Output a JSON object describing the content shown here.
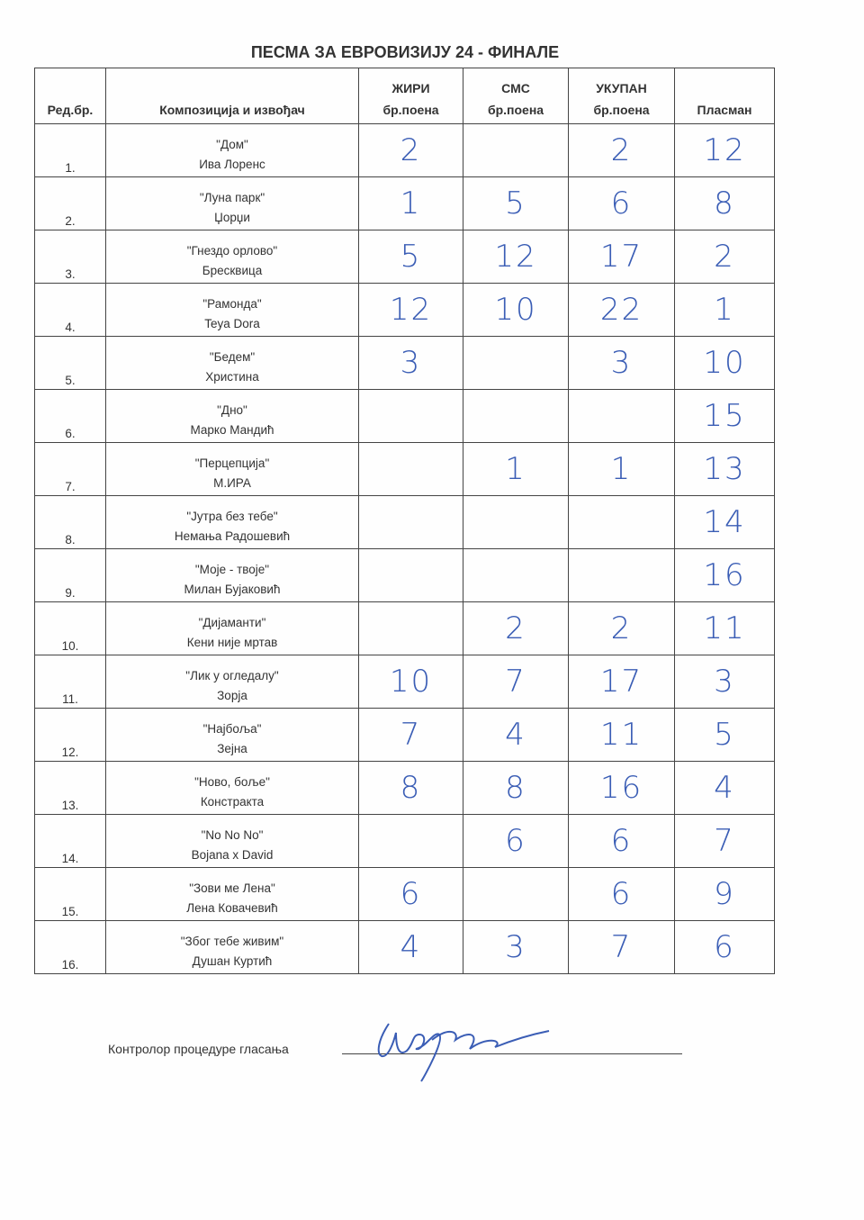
{
  "title": "ПЕСМА ЗА ЕВРОВИЗИЈУ 24 - ФИНАЛЕ",
  "headers": {
    "num": "Ред.бр.",
    "comp": "Композиција и извођач",
    "jury_1": "ЖИРИ",
    "jury_2": "бр.поена",
    "sms_1": "СМС",
    "sms_2": "бр.поена",
    "total_1": "УКУПАН",
    "total_2": "бр.поена",
    "place": "Пласман"
  },
  "rows": [
    {
      "num": "1.",
      "song": "\"Дом\"",
      "artist": "Ива Лоренс",
      "jury": "2",
      "sms": "",
      "total": "2",
      "place": "12"
    },
    {
      "num": "2.",
      "song": "\"Луна парк\"",
      "artist": "Џорџи",
      "jury": "1",
      "sms": "5",
      "total": "6",
      "place": "8"
    },
    {
      "num": "3.",
      "song": "\"Гнездо орлово\"",
      "artist": "Бресквица",
      "jury": "5",
      "sms": "12",
      "total": "17",
      "place": "2"
    },
    {
      "num": "4.",
      "song": "\"Рамонда\"",
      "artist": "Teya Dora",
      "jury": "12",
      "sms": "10",
      "total": "22",
      "place": "1"
    },
    {
      "num": "5.",
      "song": "\"Бедем\"",
      "artist": "Христина",
      "jury": "3",
      "sms": "",
      "total": "3",
      "place": "10"
    },
    {
      "num": "6.",
      "song": "\"Дно\"",
      "artist": "Марко Мандић",
      "jury": "",
      "sms": "",
      "total": "",
      "place": "15"
    },
    {
      "num": "7.",
      "song": "\"Перцепција\"",
      "artist": "М.ИРА",
      "jury": "",
      "sms": "1",
      "total": "1",
      "place": "13"
    },
    {
      "num": "8.",
      "song": "\"Јутра без тебе\"",
      "artist": "Немања Радошевић",
      "jury": "",
      "sms": "",
      "total": "",
      "place": "14"
    },
    {
      "num": "9.",
      "song": "\"Моје - твоје\"",
      "artist": "Милан Бујаковић",
      "jury": "",
      "sms": "",
      "total": "",
      "place": "16"
    },
    {
      "num": "10.",
      "song": "\"Дијаманти\"",
      "artist": "Кени није мртав",
      "jury": "",
      "sms": "2",
      "total": "2",
      "place": "11"
    },
    {
      "num": "11.",
      "song": "\"Лик у огледалу\"",
      "artist": "Зорја",
      "jury": "10",
      "sms": "7",
      "total": "17",
      "place": "3"
    },
    {
      "num": "12.",
      "song": "\"Најбоља\"",
      "artist": "Зејна",
      "jury": "7",
      "sms": "4",
      "total": "11",
      "place": "5"
    },
    {
      "num": "13.",
      "song": "\"Ново, боље\"",
      "artist": "Констракта",
      "jury": "8",
      "sms": "8",
      "total": "16",
      "place": "4"
    },
    {
      "num": "14.",
      "song": "\"No No No\"",
      "artist": "Bojana x David",
      "jury": "",
      "sms": "6",
      "total": "6",
      "place": "7"
    },
    {
      "num": "15.",
      "song": "\"Зови ме Лена\"",
      "artist": "Лена Ковачевић",
      "jury": "6",
      "sms": "",
      "total": "6",
      "place": "9"
    },
    {
      "num": "16.",
      "song": "\"Због тебе живим\"",
      "artist": "Душан Куртић",
      "jury": "4",
      "sms": "3",
      "total": "7",
      "place": "6"
    }
  ],
  "footer": {
    "signature_label": "Контролор процедуре гласања"
  },
  "colors": {
    "ink": "#3a5db5",
    "text": "#333333"
  }
}
